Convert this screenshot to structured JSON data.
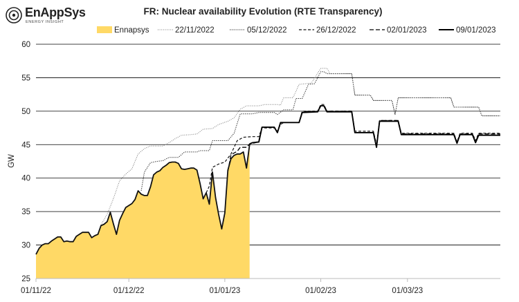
{
  "logo": {
    "name": "EnAppSys",
    "tagline": "ENERGY INSIGHT"
  },
  "chart_data": {
    "type": "area",
    "title": "FR: Nuclear availability Evolution (RTE Transparency)",
    "xlabel": "",
    "ylabel": "GW",
    "ylim": [
      25,
      60
    ],
    "yticks": [
      25,
      30,
      35,
      40,
      45,
      50,
      55,
      60
    ],
    "xticks": [
      {
        "date": "2022-11-01",
        "label": "01/11/22"
      },
      {
        "date": "2022-12-01",
        "label": "01/12/22"
      },
      {
        "date": "2023-01-01",
        "label": "01/01/23"
      },
      {
        "date": "2023-02-01",
        "label": "01/02/23"
      },
      {
        "date": "2023-03-01",
        "label": "01/03/23"
      }
    ],
    "x_range": [
      "2022-11-01",
      "2023-03-31"
    ],
    "grid": "horizontal",
    "legend_position": "top",
    "series": [
      {
        "name": "Ennapsys",
        "style": "fill",
        "color": "#FFD966",
        "points": [
          [
            "2022-11-01",
            28.6
          ],
          [
            "2022-11-02",
            29.5
          ],
          [
            "2022-11-03",
            30.0
          ],
          [
            "2022-11-04",
            30.2
          ],
          [
            "2022-11-05",
            30.2
          ],
          [
            "2022-11-06",
            30.6
          ],
          [
            "2022-11-07",
            30.9
          ],
          [
            "2022-11-08",
            31.2
          ],
          [
            "2022-11-09",
            31.2
          ],
          [
            "2022-11-10",
            30.5
          ],
          [
            "2022-11-11",
            30.6
          ],
          [
            "2022-11-12",
            30.5
          ],
          [
            "2022-11-13",
            30.5
          ],
          [
            "2022-11-14",
            31.3
          ],
          [
            "2022-11-15",
            31.6
          ],
          [
            "2022-11-16",
            31.9
          ],
          [
            "2022-11-17",
            31.9
          ],
          [
            "2022-11-18",
            31.9
          ],
          [
            "2022-11-19",
            31.1
          ],
          [
            "2022-11-20",
            31.4
          ],
          [
            "2022-11-21",
            31.6
          ],
          [
            "2022-11-22",
            32.9
          ],
          [
            "2022-11-23",
            33.1
          ],
          [
            "2022-11-24",
            33.5
          ],
          [
            "2022-11-25",
            34.9
          ],
          [
            "2022-11-26",
            33.2
          ],
          [
            "2022-11-27",
            31.6
          ],
          [
            "2022-11-28",
            33.7
          ],
          [
            "2022-11-29",
            34.7
          ],
          [
            "2022-11-30",
            35.6
          ],
          [
            "2022-12-01",
            35.9
          ],
          [
            "2022-12-02",
            36.2
          ],
          [
            "2022-12-03",
            36.8
          ],
          [
            "2022-12-04",
            38.1
          ],
          [
            "2022-12-05",
            37.6
          ],
          [
            "2022-12-06",
            37.4
          ],
          [
            "2022-12-07",
            37.4
          ],
          [
            "2022-12-08",
            38.7
          ],
          [
            "2022-12-09",
            40.5
          ],
          [
            "2022-12-10",
            40.9
          ],
          [
            "2022-12-11",
            41.1
          ],
          [
            "2022-12-12",
            41.6
          ],
          [
            "2022-12-13",
            41.9
          ],
          [
            "2022-12-14",
            42.3
          ],
          [
            "2022-12-15",
            42.4
          ],
          [
            "2022-12-16",
            42.4
          ],
          [
            "2022-12-17",
            42.2
          ],
          [
            "2022-12-18",
            41.4
          ],
          [
            "2022-12-19",
            41.3
          ],
          [
            "2022-12-20",
            41.4
          ],
          [
            "2022-12-21",
            41.5
          ],
          [
            "2022-12-22",
            41.5
          ],
          [
            "2022-12-23",
            41.2
          ],
          [
            "2022-12-24",
            39.2
          ],
          [
            "2022-12-25",
            36.9
          ],
          [
            "2022-12-26",
            37.8
          ],
          [
            "2022-12-27",
            36.1
          ],
          [
            "2022-12-28",
            40.9
          ],
          [
            "2022-12-29",
            37.1
          ],
          [
            "2022-12-30",
            34.6
          ],
          [
            "2022-12-31",
            32.4
          ],
          [
            "2023-01-01",
            34.8
          ],
          [
            "2023-01-02",
            41.2
          ],
          [
            "2023-01-03",
            42.9
          ],
          [
            "2023-01-04",
            43.4
          ],
          [
            "2023-01-05",
            43.6
          ],
          [
            "2023-01-06",
            43.6
          ],
          [
            "2023-01-07",
            43.9
          ],
          [
            "2023-01-08",
            41.5
          ],
          [
            "2023-01-09",
            45.0
          ]
        ]
      },
      {
        "name": "22/11/2022",
        "style": "dotted-thin",
        "color": "#777777",
        "points": [
          [
            "2022-11-22",
            33.0
          ],
          [
            "2022-11-24",
            34.6
          ],
          [
            "2022-11-26",
            36.9
          ],
          [
            "2022-11-28",
            39.6
          ],
          [
            "2022-11-30",
            40.6
          ],
          [
            "2022-12-02",
            41.4
          ],
          [
            "2022-12-04",
            43.6
          ],
          [
            "2022-12-06",
            44.4
          ],
          [
            "2022-12-08",
            44.8
          ],
          [
            "2022-12-12",
            44.8
          ],
          [
            "2022-12-14",
            45.3
          ],
          [
            "2022-12-16",
            45.9
          ],
          [
            "2022-12-18",
            46.4
          ],
          [
            "2022-12-21",
            46.5
          ],
          [
            "2022-12-23",
            46.6
          ],
          [
            "2022-12-25",
            47.3
          ],
          [
            "2022-12-28",
            47.4
          ],
          [
            "2022-12-30",
            48.0
          ],
          [
            "2023-01-02",
            48.5
          ],
          [
            "2023-01-04",
            49.0
          ],
          [
            "2023-01-06",
            50.3
          ],
          [
            "2023-01-08",
            50.8
          ],
          [
            "2023-01-12",
            50.8
          ],
          [
            "2023-01-14",
            51.0
          ],
          [
            "2023-01-18",
            51.0
          ],
          [
            "2023-01-19",
            50.9
          ],
          [
            "2023-01-20",
            52.0
          ],
          [
            "2023-01-23",
            52.0
          ],
          [
            "2023-01-25",
            54.0
          ],
          [
            "2023-01-29",
            54.2
          ],
          [
            "2023-02-01",
            56.4
          ],
          [
            "2023-02-03",
            56.4
          ],
          [
            "2023-02-04",
            55.6
          ],
          [
            "2023-02-11",
            55.6
          ],
          [
            "2023-02-12",
            52.4
          ],
          [
            "2023-02-17",
            52.4
          ],
          [
            "2023-02-18",
            51.6
          ],
          [
            "2023-02-24",
            51.6
          ],
          [
            "2023-02-25",
            49.5
          ],
          [
            "2023-02-26",
            52.0
          ],
          [
            "2023-03-15",
            52.0
          ],
          [
            "2023-03-16",
            50.6
          ],
          [
            "2023-03-24",
            50.6
          ],
          [
            "2023-03-25",
            49.3
          ],
          [
            "2023-03-31",
            49.3
          ]
        ]
      },
      {
        "name": "05/12/2022",
        "style": "dotted",
        "color": "#333333",
        "points": [
          [
            "2022-12-05",
            38.1
          ],
          [
            "2022-12-06",
            40.9
          ],
          [
            "2022-12-08",
            42.3
          ],
          [
            "2022-12-10",
            42.5
          ],
          [
            "2022-12-12",
            42.6
          ],
          [
            "2022-12-14",
            43.1
          ],
          [
            "2022-12-17",
            43.1
          ],
          [
            "2022-12-19",
            43.9
          ],
          [
            "2022-12-23",
            43.9
          ],
          [
            "2022-12-24",
            44.1
          ],
          [
            "2022-12-27",
            44.1
          ],
          [
            "2022-12-28",
            45.6
          ],
          [
            "2023-01-02",
            45.6
          ],
          [
            "2023-01-04",
            46.7
          ],
          [
            "2023-01-06",
            49.6
          ],
          [
            "2023-01-10",
            49.6
          ],
          [
            "2023-01-12",
            49.8
          ],
          [
            "2023-01-17",
            49.8
          ],
          [
            "2023-01-18",
            49.5
          ],
          [
            "2023-01-20",
            50.2
          ],
          [
            "2023-01-23",
            50.2
          ],
          [
            "2023-01-24",
            51.9
          ],
          [
            "2023-01-26",
            51.9
          ],
          [
            "2023-01-28",
            54.0
          ],
          [
            "2023-01-30",
            54.1
          ],
          [
            "2023-02-01",
            55.9
          ],
          [
            "2023-02-02",
            55.9
          ],
          [
            "2023-02-03",
            55.6
          ],
          [
            "2023-02-11",
            55.6
          ],
          [
            "2023-02-12",
            52.4
          ],
          [
            "2023-02-17",
            52.4
          ],
          [
            "2023-02-18",
            51.6
          ],
          [
            "2023-02-24",
            51.6
          ],
          [
            "2023-02-25",
            49.5
          ],
          [
            "2023-02-26",
            52.0
          ],
          [
            "2023-03-15",
            52.0
          ],
          [
            "2023-03-16",
            50.6
          ],
          [
            "2023-03-24",
            50.6
          ],
          [
            "2023-03-25",
            49.3
          ],
          [
            "2023-03-31",
            49.3
          ]
        ]
      },
      {
        "name": "26/12/2022",
        "style": "dashed",
        "color": "#111111",
        "points": [
          [
            "2022-12-26",
            37.8
          ],
          [
            "2022-12-27",
            38.8
          ],
          [
            "2022-12-28",
            41.6
          ],
          [
            "2022-12-30",
            42.1
          ],
          [
            "2023-01-01",
            42.4
          ],
          [
            "2023-01-03",
            43.6
          ],
          [
            "2023-01-05",
            45.6
          ],
          [
            "2023-01-07",
            46.1
          ],
          [
            "2023-01-10",
            46.2
          ],
          [
            "2023-01-12",
            46.2
          ],
          [
            "2023-01-13",
            47.5
          ],
          [
            "2023-01-17",
            47.5
          ],
          [
            "2023-01-18",
            47.0
          ],
          [
            "2023-01-19",
            48.0
          ],
          [
            "2023-01-20",
            48.3
          ],
          [
            "2023-01-25",
            48.3
          ],
          [
            "2023-01-26",
            50.0
          ],
          [
            "2023-01-31",
            50.0
          ],
          [
            "2023-02-01",
            51.0
          ],
          [
            "2023-02-02",
            51.0
          ],
          [
            "2023-02-03",
            50.0
          ],
          [
            "2023-02-11",
            50.0
          ],
          [
            "2023-02-12",
            47.0
          ],
          [
            "2023-02-18",
            47.0
          ],
          [
            "2023-02-19",
            45.0
          ],
          [
            "2023-02-20",
            48.6
          ],
          [
            "2023-02-26",
            48.6
          ],
          [
            "2023-02-27",
            46.7
          ],
          [
            "2023-03-16",
            46.7
          ],
          [
            "2023-03-17",
            45.4
          ],
          [
            "2023-03-18",
            46.7
          ],
          [
            "2023-03-22",
            46.7
          ],
          [
            "2023-03-23",
            45.6
          ],
          [
            "2023-03-24",
            46.7
          ],
          [
            "2023-03-31",
            46.7
          ]
        ]
      },
      {
        "name": "02/01/2023",
        "style": "longdash",
        "color": "#000000",
        "points": [
          [
            "2023-01-02",
            41.0
          ],
          [
            "2023-01-03",
            43.5
          ],
          [
            "2023-01-05",
            44.0
          ],
          [
            "2023-01-06",
            44.6
          ],
          [
            "2023-01-08",
            44.6
          ],
          [
            "2023-01-09",
            45.1
          ],
          [
            "2023-01-11",
            45.3
          ],
          [
            "2023-01-12",
            45.6
          ],
          [
            "2023-01-13",
            47.6
          ],
          [
            "2023-01-17",
            47.6
          ],
          [
            "2023-01-18",
            46.8
          ],
          [
            "2023-01-19",
            48.3
          ],
          [
            "2023-01-25",
            48.3
          ],
          [
            "2023-01-26",
            49.9
          ],
          [
            "2023-01-31",
            50.0
          ],
          [
            "2023-02-01",
            50.8
          ],
          [
            "2023-02-02",
            50.8
          ],
          [
            "2023-02-03",
            50.0
          ],
          [
            "2023-02-11",
            50.0
          ],
          [
            "2023-02-12",
            46.8
          ],
          [
            "2023-02-18",
            46.8
          ],
          [
            "2023-02-19",
            44.7
          ],
          [
            "2023-02-20",
            48.6
          ],
          [
            "2023-02-26",
            48.6
          ],
          [
            "2023-02-27",
            46.6
          ],
          [
            "2023-03-16",
            46.6
          ],
          [
            "2023-03-17",
            45.3
          ],
          [
            "2023-03-18",
            46.6
          ],
          [
            "2023-03-22",
            46.6
          ],
          [
            "2023-03-23",
            45.4
          ],
          [
            "2023-03-24",
            46.6
          ],
          [
            "2023-03-31",
            46.6
          ]
        ]
      },
      {
        "name": "09/01/2023",
        "style": "solid",
        "color": "#000000",
        "points": [
          [
            "2023-01-09",
            45.1
          ],
          [
            "2023-01-10",
            45.3
          ],
          [
            "2023-01-12",
            45.4
          ],
          [
            "2023-01-13",
            47.6
          ],
          [
            "2023-01-17",
            47.6
          ],
          [
            "2023-01-18",
            46.8
          ],
          [
            "2023-01-19",
            48.3
          ],
          [
            "2023-01-25",
            48.3
          ],
          [
            "2023-01-26",
            49.8
          ],
          [
            "2023-01-31",
            49.9
          ],
          [
            "2023-02-01",
            50.8
          ],
          [
            "2023-02-02",
            50.8
          ],
          [
            "2023-02-03",
            49.9
          ],
          [
            "2023-02-11",
            49.9
          ],
          [
            "2023-02-12",
            46.8
          ],
          [
            "2023-02-18",
            46.8
          ],
          [
            "2023-02-19",
            44.6
          ],
          [
            "2023-02-20",
            48.5
          ],
          [
            "2023-02-26",
            48.5
          ],
          [
            "2023-02-27",
            46.5
          ],
          [
            "2023-03-16",
            46.5
          ],
          [
            "2023-03-17",
            45.2
          ],
          [
            "2023-03-18",
            46.5
          ],
          [
            "2023-03-22",
            46.5
          ],
          [
            "2023-03-23",
            45.3
          ],
          [
            "2023-03-24",
            46.4
          ],
          [
            "2023-03-31",
            46.4
          ]
        ]
      }
    ]
  }
}
